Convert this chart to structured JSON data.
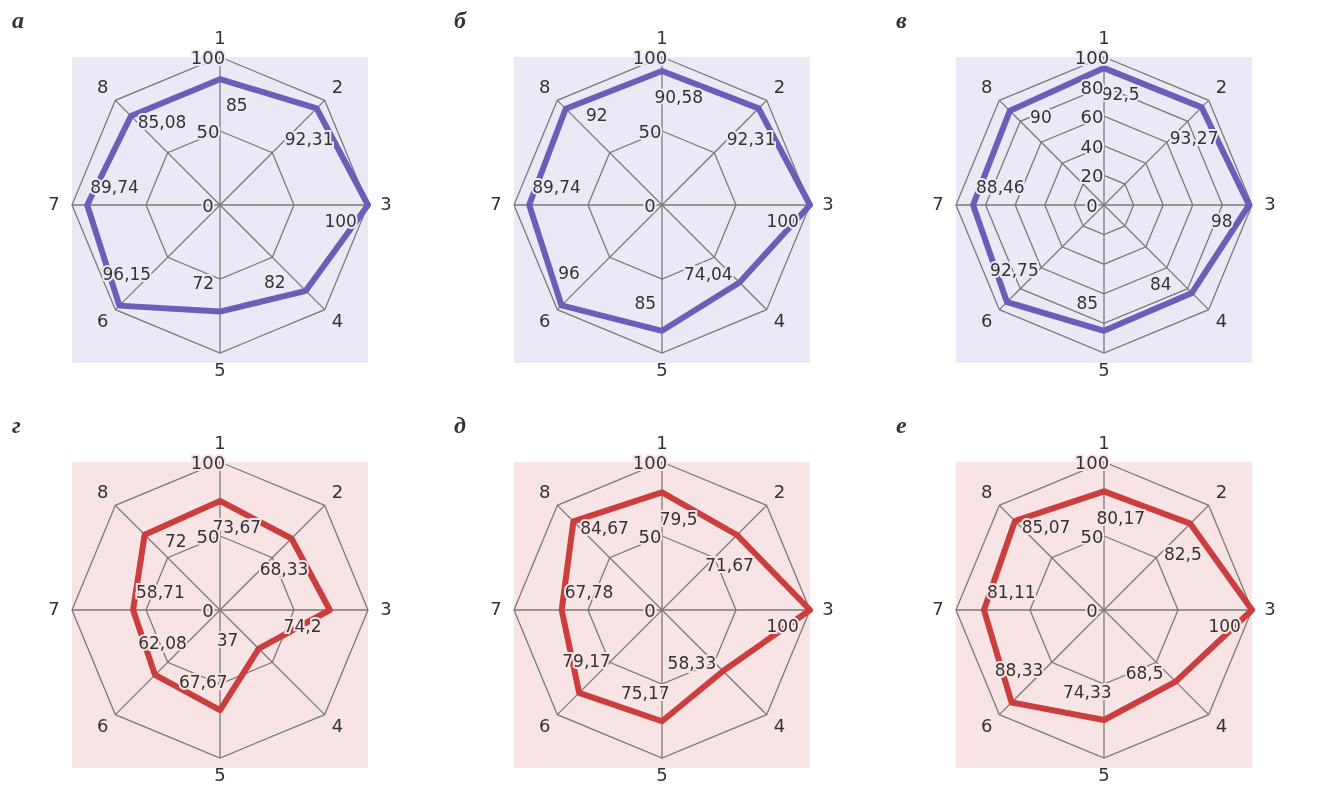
{
  "chart_data": [
    {
      "type": "radar",
      "title": "а",
      "categories": [
        "1",
        "2",
        "3",
        "4",
        "5",
        "6",
        "7",
        "8"
      ],
      "ylim": [
        0,
        100
      ],
      "yticks": [
        0,
        50,
        100
      ],
      "grid": true,
      "series": [
        {
          "color": "#6a5fb8",
          "values": [
            85,
            92.31,
            100,
            82,
            72,
            96.15,
            89.74,
            85.08
          ],
          "value_labels": [
            "85",
            "92,31",
            "100",
            "82",
            "72",
            "96,15",
            "89,74",
            "85,08"
          ]
        }
      ]
    },
    {
      "type": "radar",
      "title": "б",
      "categories": [
        "1",
        "2",
        "3",
        "4",
        "5",
        "6",
        "7",
        "8"
      ],
      "ylim": [
        0,
        100
      ],
      "yticks": [
        0,
        50,
        100
      ],
      "grid": true,
      "series": [
        {
          "color": "#6a5fb8",
          "values": [
            90.58,
            92.31,
            100,
            74.04,
            85,
            96,
            89.74,
            92
          ],
          "value_labels": [
            "90,58",
            "92,31",
            "100",
            "74,04",
            "85",
            "96",
            "89,74",
            "92"
          ]
        }
      ]
    },
    {
      "type": "radar",
      "title": "в",
      "categories": [
        "1",
        "2",
        "3",
        "4",
        "5",
        "6",
        "7",
        "8"
      ],
      "ylim": [
        0,
        100
      ],
      "yticks": [
        0,
        20,
        40,
        60,
        80,
        100
      ],
      "grid": true,
      "series": [
        {
          "color": "#6a5fb8",
          "values": [
            92.5,
            93.27,
            98,
            84,
            85,
            92.75,
            88.46,
            90
          ],
          "value_labels": [
            "92,5",
            "93,27",
            "98",
            "84",
            "85",
            "92,75",
            "88,46",
            "90"
          ]
        }
      ]
    },
    {
      "type": "radar",
      "title": "г",
      "categories": [
        "1",
        "2",
        "3",
        "4",
        "5",
        "6",
        "7",
        "8"
      ],
      "ylim": [
        0,
        100
      ],
      "yticks": [
        0,
        50,
        100
      ],
      "grid": true,
      "series": [
        {
          "color": "#cc3d3d",
          "values": [
            73.67,
            68.33,
            74.2,
            37,
            67.67,
            62.08,
            58.71,
            72
          ],
          "value_labels": [
            "73,67",
            "68,33",
            "74,2",
            "37",
            "67,67",
            "62,08",
            "58,71",
            "72"
          ]
        }
      ]
    },
    {
      "type": "radar",
      "title": "д",
      "categories": [
        "1",
        "2",
        "3",
        "4",
        "5",
        "6",
        "7",
        "8"
      ],
      "ylim": [
        0,
        100
      ],
      "yticks": [
        0,
        50,
        100
      ],
      "grid": true,
      "series": [
        {
          "color": "#cc3d3d",
          "values": [
            79.5,
            71.67,
            100,
            58.33,
            75.17,
            79.17,
            67.78,
            84.67
          ],
          "value_labels": [
            "79,5",
            "71,67",
            "100",
            "58,33",
            "75,17",
            "79,17",
            "67,78",
            "84,67"
          ]
        }
      ]
    },
    {
      "type": "radar",
      "title": "е",
      "categories": [
        "1",
        "2",
        "3",
        "4",
        "5",
        "6",
        "7",
        "8"
      ],
      "ylim": [
        0,
        100
      ],
      "yticks": [
        0,
        50,
        100
      ],
      "grid": true,
      "series": [
        {
          "color": "#cc3d3d",
          "values": [
            80.17,
            82.5,
            100,
            68.5,
            74.33,
            88.33,
            81.11,
            85.07
          ],
          "value_labels": [
            "80,17",
            "82,5",
            "100",
            "68,5",
            "74,33",
            "88,33",
            "81,11",
            "85,07"
          ]
        }
      ]
    }
  ]
}
